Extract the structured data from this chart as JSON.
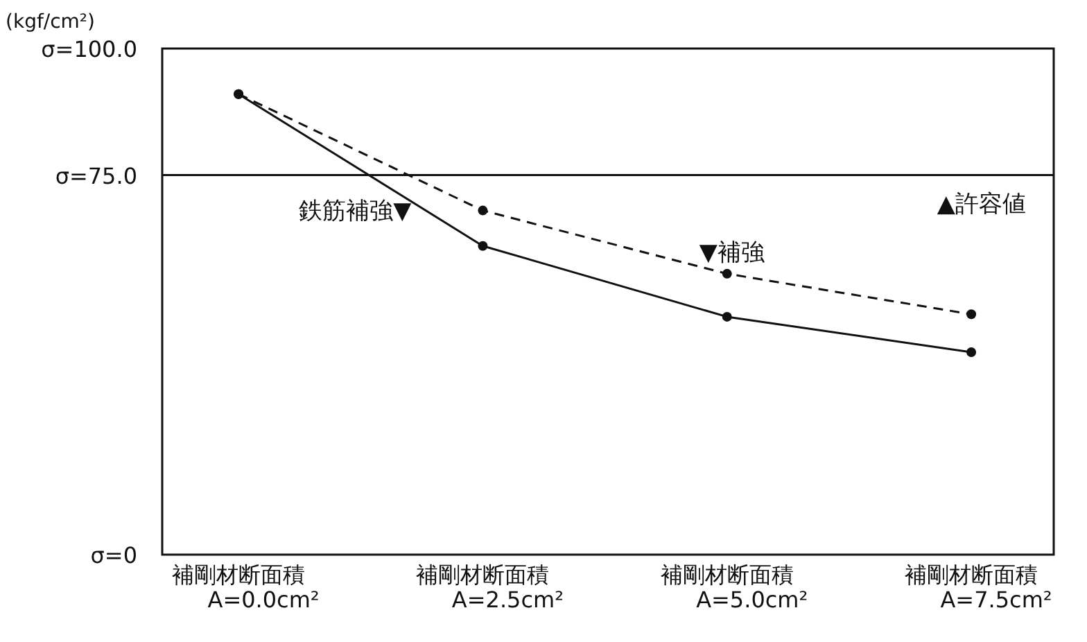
{
  "chart_data": {
    "type": "line",
    "ylabel": "(kgf/cm²)",
    "categories": [
      "補剛材断面積\nA=0.0cm²",
      "補剛材断面積\nA=2.5cm²",
      "補剛材断面積\nA=5.0cm²",
      "補剛材断面積\nA=7.5cm²"
    ],
    "series": [
      {
        "name": "鉄筋補強▼",
        "color": "#111111",
        "line_style": "solid",
        "values": [
          91,
          61,
          47,
          40
        ]
      },
      {
        "name": "▼補強",
        "color": "#111111",
        "line_style": "dashed",
        "values": [
          91,
          68,
          55.5,
          47.5
        ]
      }
    ],
    "ylim": [
      0,
      100
    ],
    "yticks": [
      {
        "value": 0,
        "label": "σ=0"
      },
      {
        "value": 75,
        "label": "σ=75.0"
      },
      {
        "value": 100,
        "label": "σ=100.0"
      }
    ],
    "ref_lines": [
      {
        "axis": "y",
        "value": 75,
        "label": "▲許容値",
        "color": "#111111",
        "line_style": "solid"
      }
    ],
    "grid": false,
    "marker": "circle"
  }
}
